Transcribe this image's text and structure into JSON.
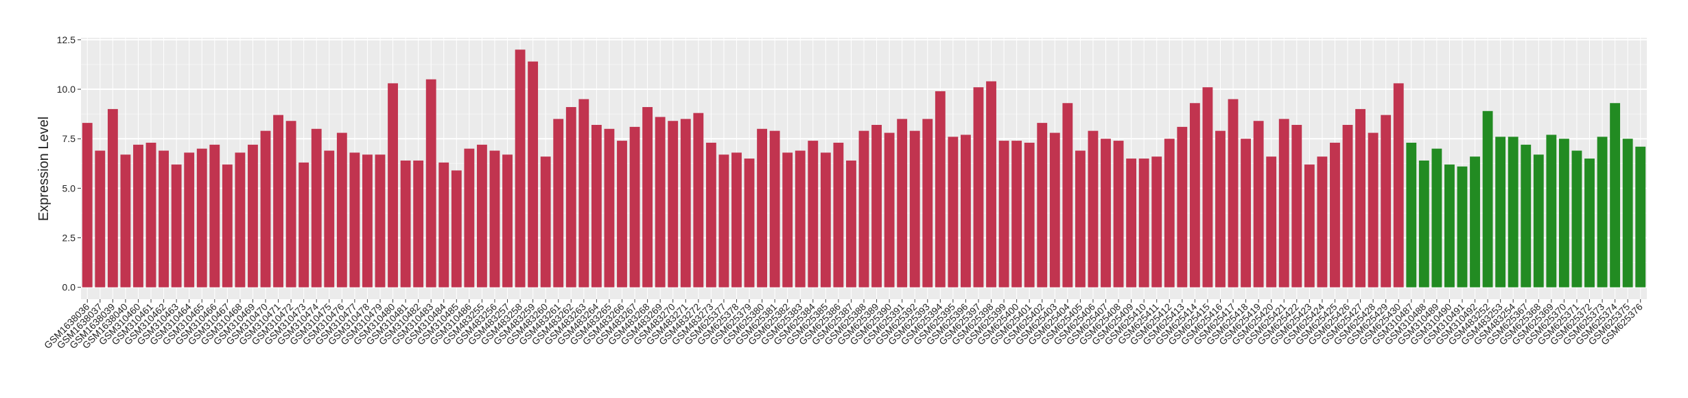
{
  "chart_data": {
    "type": "bar",
    "y_label": "Expression Level",
    "categories": [
      "GSM1638036",
      "GSM1638037",
      "GSM1638039",
      "GSM1638040",
      "GSM310460",
      "GSM310461",
      "GSM310462",
      "GSM310463",
      "GSM310464",
      "GSM310465",
      "GSM310466",
      "GSM310467",
      "GSM310468",
      "GSM310469",
      "GSM310470",
      "GSM310471",
      "GSM310472",
      "GSM310473",
      "GSM310474",
      "GSM310475",
      "GSM310476",
      "GSM310477",
      "GSM310478",
      "GSM310479",
      "GSM310480",
      "GSM310481",
      "GSM310482",
      "GSM310483",
      "GSM310484",
      "GSM310485",
      "GSM310486",
      "GSM483255",
      "GSM483256",
      "GSM483257",
      "GSM483258",
      "GSM483259",
      "GSM483260",
      "GSM483261",
      "GSM483262",
      "GSM483263",
      "GSM483264",
      "GSM483265",
      "GSM483266",
      "GSM483267",
      "GSM483268",
      "GSM483269",
      "GSM483270",
      "GSM483271",
      "GSM483272",
      "GSM483273",
      "GSM625377",
      "GSM625378",
      "GSM625379",
      "GSM625380",
      "GSM625381",
      "GSM625382",
      "GSM625383",
      "GSM625384",
      "GSM625385",
      "GSM625386",
      "GSM625387",
      "GSM625388",
      "GSM625389",
      "GSM625390",
      "GSM625391",
      "GSM625392",
      "GSM625393",
      "GSM625394",
      "GSM625395",
      "GSM625396",
      "GSM625397",
      "GSM625398",
      "GSM625399",
      "GSM625400",
      "GSM625401",
      "GSM625402",
      "GSM625403",
      "GSM625404",
      "GSM625405",
      "GSM625406",
      "GSM625407",
      "GSM625408",
      "GSM625409",
      "GSM625410",
      "GSM625411",
      "GSM625412",
      "GSM625413",
      "GSM625414",
      "GSM625415",
      "GSM625416",
      "GSM625417",
      "GSM625418",
      "GSM625419",
      "GSM625420",
      "GSM625421",
      "GSM625422",
      "GSM625423",
      "GSM625424",
      "GSM625425",
      "GSM625426",
      "GSM625427",
      "GSM625428",
      "GSM625429",
      "GSM625430",
      "GSM310487",
      "GSM310488",
      "GSM310489",
      "GSM310490",
      "GSM310491",
      "GSM310492",
      "GSM483252",
      "GSM483253",
      "GSM483254",
      "GSM625367",
      "GSM625368",
      "GSM625369",
      "GSM625370",
      "GSM625371",
      "GSM625372",
      "GSM625373",
      "GSM625374",
      "GSM625375",
      "GSM625376"
    ],
    "values": [
      8.3,
      6.9,
      9.0,
      6.7,
      7.2,
      7.3,
      6.9,
      6.2,
      6.8,
      7.0,
      7.2,
      6.2,
      6.8,
      7.2,
      7.9,
      8.7,
      8.4,
      6.3,
      8.0,
      6.9,
      7.8,
      6.8,
      6.7,
      6.7,
      10.3,
      6.4,
      6.4,
      10.5,
      6.3,
      5.9,
      7.0,
      7.2,
      6.9,
      6.7,
      12.0,
      11.4,
      6.6,
      8.5,
      9.1,
      9.5,
      8.2,
      8.0,
      7.4,
      8.1,
      9.1,
      8.6,
      8.4,
      8.5,
      8.8,
      7.3,
      6.7,
      6.8,
      6.5,
      8.0,
      7.9,
      6.8,
      6.9,
      7.4,
      6.8,
      7.3,
      6.4,
      7.9,
      8.2,
      7.8,
      8.5,
      7.9,
      8.5,
      9.9,
      7.6,
      7.7,
      10.1,
      10.4,
      7.4,
      7.4,
      7.3,
      8.3,
      7.8,
      9.3,
      6.9,
      7.9,
      7.5,
      7.4,
      6.5,
      6.5,
      6.6,
      7.5,
      8.1,
      9.3,
      10.1,
      7.9,
      9.5,
      7.5,
      8.4,
      6.6,
      8.5,
      8.2,
      6.2,
      6.6,
      7.3,
      8.2,
      9.0,
      7.8,
      8.7,
      10.3,
      7.3,
      6.4,
      7.0,
      6.2,
      6.1,
      6.6,
      8.9,
      7.6,
      7.6,
      7.2,
      6.7,
      7.7,
      7.5,
      6.9,
      6.5,
      7.6,
      9.3,
      7.5,
      7.1
    ],
    "colors": [
      "#c1344f",
      "#c1344f",
      "#c1344f",
      "#c1344f",
      "#c1344f",
      "#c1344f",
      "#c1344f",
      "#c1344f",
      "#c1344f",
      "#c1344f",
      "#c1344f",
      "#c1344f",
      "#c1344f",
      "#c1344f",
      "#c1344f",
      "#c1344f",
      "#c1344f",
      "#c1344f",
      "#c1344f",
      "#c1344f",
      "#c1344f",
      "#c1344f",
      "#c1344f",
      "#c1344f",
      "#c1344f",
      "#c1344f",
      "#c1344f",
      "#c1344f",
      "#c1344f",
      "#c1344f",
      "#c1344f",
      "#c1344f",
      "#c1344f",
      "#c1344f",
      "#c1344f",
      "#c1344f",
      "#c1344f",
      "#c1344f",
      "#c1344f",
      "#c1344f",
      "#c1344f",
      "#c1344f",
      "#c1344f",
      "#c1344f",
      "#c1344f",
      "#c1344f",
      "#c1344f",
      "#c1344f",
      "#c1344f",
      "#c1344f",
      "#c1344f",
      "#c1344f",
      "#c1344f",
      "#c1344f",
      "#c1344f",
      "#c1344f",
      "#c1344f",
      "#c1344f",
      "#c1344f",
      "#c1344f",
      "#c1344f",
      "#c1344f",
      "#c1344f",
      "#c1344f",
      "#c1344f",
      "#c1344f",
      "#c1344f",
      "#c1344f",
      "#c1344f",
      "#c1344f",
      "#c1344f",
      "#c1344f",
      "#c1344f",
      "#c1344f",
      "#c1344f",
      "#c1344f",
      "#c1344f",
      "#c1344f",
      "#c1344f",
      "#c1344f",
      "#c1344f",
      "#c1344f",
      "#c1344f",
      "#c1344f",
      "#c1344f",
      "#c1344f",
      "#c1344f",
      "#c1344f",
      "#c1344f",
      "#c1344f",
      "#c1344f",
      "#c1344f",
      "#c1344f",
      "#c1344f",
      "#c1344f",
      "#c1344f",
      "#c1344f",
      "#c1344f",
      "#c1344f",
      "#c1344f",
      "#c1344f",
      "#c1344f",
      "#c1344f",
      "#c1344f",
      "#228b22",
      "#228b22",
      "#228b22",
      "#228b22",
      "#228b22",
      "#228b22",
      "#228b22",
      "#228b22",
      "#228b22",
      "#228b22",
      "#228b22",
      "#228b22",
      "#228b22",
      "#228b22",
      "#228b22",
      "#228b22",
      "#228b22",
      "#228b22",
      "#228b22"
    ],
    "ylim": [
      -0.6,
      12.6
    ],
    "yticks": [
      {
        "value": 0,
        "label": "0.0"
      },
      2.5,
      {
        "value": 5,
        "label": "5.0"
      },
      7.5,
      {
        "value": 10,
        "label": "10.0"
      },
      12.5
    ],
    "grid": true
  }
}
